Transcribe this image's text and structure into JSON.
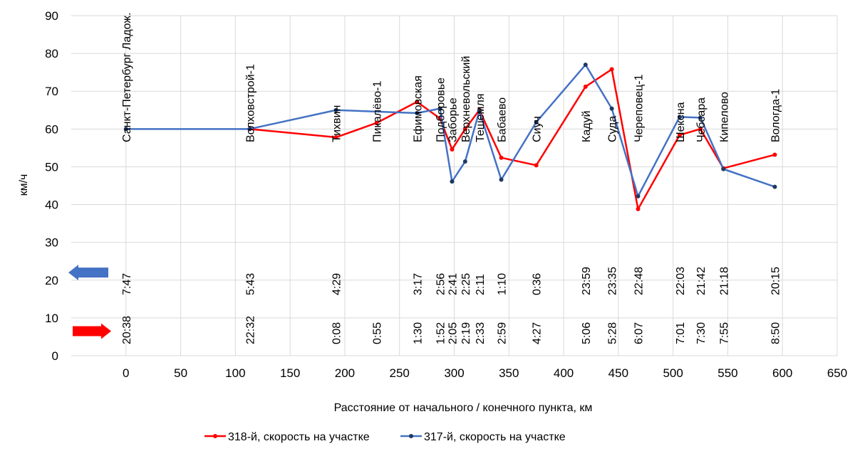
{
  "chart_data": {
    "type": "line",
    "title": "",
    "xlabel": "Расстояние от начального / конечного пункта, км",
    "ylabel": "км/ч",
    "xlim": [
      -50,
      650
    ],
    "ylim": [
      0,
      90
    ],
    "x_ticks": [
      0,
      50,
      100,
      150,
      200,
      250,
      300,
      350,
      400,
      450,
      500,
      550,
      600,
      650
    ],
    "y_ticks": [
      0,
      10,
      20,
      30,
      40,
      50,
      60,
      70,
      80,
      90
    ],
    "grid": true,
    "legend_position": "bottom",
    "series": [
      {
        "name": "318-й, скорость на участке",
        "color": "#ff0000",
        "x": [
          113,
          192,
          229,
          266,
          287,
          298,
          310,
          323,
          343,
          375,
          420,
          444,
          468,
          506,
          525,
          546,
          593
        ],
        "y": [
          60,
          57.8,
          61.6,
          67.2,
          62.8,
          54.6,
          60,
          65,
          52.4,
          50.4,
          71.2,
          75.8,
          38.8,
          58.4,
          60,
          49.6,
          53.2
        ]
      },
      {
        "name": "317-й, скорость на участке",
        "color": "#4472c4",
        "marker_color": "#1f3864",
        "x": [
          0,
          113,
          192,
          266,
          287,
          298,
          310,
          323,
          343,
          375,
          420,
          444,
          468,
          506,
          525,
          546,
          593
        ],
        "y": [
          60,
          60,
          65,
          64.2,
          65.4,
          46.1,
          51.4,
          64.8,
          46.6,
          61.8,
          77,
          65.4,
          42.2,
          63.2,
          63,
          49.4,
          44.7
        ]
      }
    ],
    "stations": [
      {
        "name": "Санкт-Петербург Ладож.",
        "x": 0
      },
      {
        "name": "Волховстрой-1",
        "x": 113
      },
      {
        "name": "Тихвин",
        "x": 192
      },
      {
        "name": "Пикалёво-1",
        "x": 229
      },
      {
        "name": "Ефимовская",
        "x": 266
      },
      {
        "name": "Подборовье",
        "x": 287
      },
      {
        "name": "Заборье",
        "x": 298
      },
      {
        "name": "Верхневольский",
        "x": 310
      },
      {
        "name": "Тешемля",
        "x": 323
      },
      {
        "name": "Бабаево",
        "x": 343
      },
      {
        "name": "Сиуч",
        "x": 375
      },
      {
        "name": "Кадуй",
        "x": 420
      },
      {
        "name": "Суда",
        "x": 444
      },
      {
        "name": "Череповец-1",
        "x": 468
      },
      {
        "name": "Шексна",
        "x": 506
      },
      {
        "name": "Чебсара",
        "x": 525
      },
      {
        "name": "Кипелово",
        "x": 546
      },
      {
        "name": "Вологда-1",
        "x": 593
      }
    ],
    "times_317": [
      {
        "x": 0,
        "t": "7:47"
      },
      {
        "x": 113,
        "t": "5:43"
      },
      {
        "x": 192,
        "t": "4:29"
      },
      {
        "x": 266,
        "t": "3:17"
      },
      {
        "x": 287,
        "t": "2:56"
      },
      {
        "x": 298,
        "t": "2:41"
      },
      {
        "x": 310,
        "t": "2:25"
      },
      {
        "x": 323,
        "t": "2:11"
      },
      {
        "x": 343,
        "t": "1:10"
      },
      {
        "x": 375,
        "t": "0:36"
      },
      {
        "x": 420,
        "t": "23:59"
      },
      {
        "x": 444,
        "t": "23:35"
      },
      {
        "x": 468,
        "t": "22:48"
      },
      {
        "x": 506,
        "t": "22:03"
      },
      {
        "x": 525,
        "t": "21:42"
      },
      {
        "x": 546,
        "t": "21:18"
      },
      {
        "x": 593,
        "t": "20:15"
      }
    ],
    "times_318": [
      {
        "x": 0,
        "t": "20:38"
      },
      {
        "x": 113,
        "t": "22:32"
      },
      {
        "x": 192,
        "t": "0:08"
      },
      {
        "x": 229,
        "t": "0:55"
      },
      {
        "x": 266,
        "t": "1:30"
      },
      {
        "x": 287,
        "t": "1:52"
      },
      {
        "x": 298,
        "t": "2:05"
      },
      {
        "x": 310,
        "t": "2:19"
      },
      {
        "x": 323,
        "t": "2:33"
      },
      {
        "x": 343,
        "t": "2:59"
      },
      {
        "x": 375,
        "t": "4:27"
      },
      {
        "x": 420,
        "t": "5:06"
      },
      {
        "x": 444,
        "t": "5:28"
      },
      {
        "x": 468,
        "t": "6:07"
      },
      {
        "x": 506,
        "t": "7:01"
      },
      {
        "x": 525,
        "t": "7:30"
      },
      {
        "x": 546,
        "t": "7:55"
      },
      {
        "x": 593,
        "t": "8:50"
      }
    ],
    "direction_arrows": [
      {
        "name": "317-arrow",
        "direction": "left",
        "color": "#4472c4",
        "y": 22
      },
      {
        "name": "318-arrow",
        "direction": "right",
        "color": "#ff0000",
        "y": 6.5
      }
    ]
  }
}
